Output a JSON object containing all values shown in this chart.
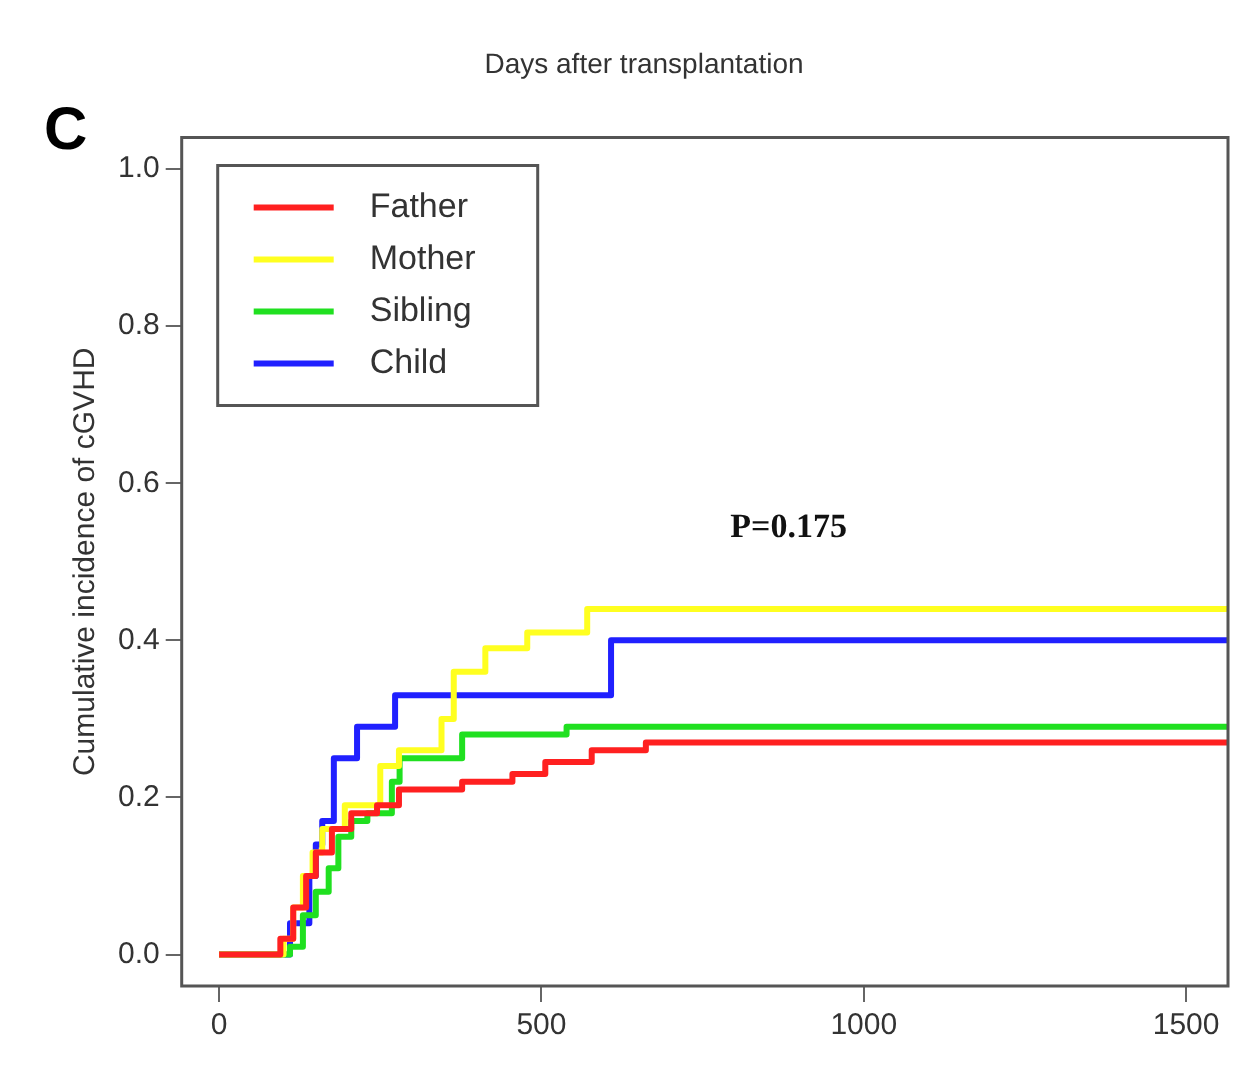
{
  "chart_data": {
    "type": "step",
    "title": "Days after transplantation",
    "ylabel": "Cumulative incidence of cGVHD",
    "annotations": [
      "C",
      "P=0.175"
    ],
    "xlim": [
      -58,
      1565
    ],
    "xticks": [
      0,
      500,
      1000,
      1500
    ],
    "ylim": [
      -0.04,
      1.04
    ],
    "yticks": [
      {
        "value": 0,
        "label": "0.0"
      },
      {
        "value": 0.2,
        "label": "0.2"
      },
      {
        "value": 0.4,
        "label": "0.4"
      },
      {
        "value": 0.6,
        "label": "0.6"
      },
      {
        "value": 0.8,
        "label": "0.8"
      },
      {
        "value": 1,
        "label": "1.0"
      }
    ],
    "grid": false,
    "legend": "top left",
    "marker": "none",
    "line_style": "solid",
    "series": [
      {
        "name": "Father",
        "color": "#ff2020",
        "x": [
          0,
          95,
          115,
          135,
          150,
          175,
          205,
          245,
          279,
          377,
          455,
          506,
          578,
          662,
          1565
        ],
        "values": [
          0,
          0.02,
          0.06,
          0.1,
          0.13,
          0.16,
          0.18,
          0.19,
          0.21,
          0.22,
          0.23,
          0.245,
          0.26,
          0.27,
          0.27
        ]
      },
      {
        "name": "Mother",
        "color": "#ffff20",
        "x": [
          0,
          100,
          115,
          130,
          145,
          160,
          195,
          250,
          279,
          345,
          364,
          413,
          478,
          571,
          1565
        ],
        "values": [
          0,
          0.02,
          0.06,
          0.1,
          0.13,
          0.16,
          0.19,
          0.24,
          0.26,
          0.3,
          0.36,
          0.39,
          0.41,
          0.44,
          0.44
        ]
      },
      {
        "name": "Sibling",
        "color": "#20e020",
        "x": [
          0,
          110,
          130,
          150,
          170,
          185,
          205,
          230,
          268,
          280,
          377,
          539,
          1565
        ],
        "values": [
          0,
          0.01,
          0.05,
          0.08,
          0.11,
          0.15,
          0.17,
          0.18,
          0.22,
          0.25,
          0.28,
          0.29,
          0.29
        ]
      },
      {
        "name": "Child",
        "color": "#2020ff",
        "x": [
          0,
          110,
          140,
          150,
          160,
          178,
          214,
          273,
          608,
          1565
        ],
        "values": [
          0,
          0.04,
          0.1,
          0.14,
          0.17,
          0.25,
          0.29,
          0.33,
          0.4,
          0.4
        ]
      }
    ]
  }
}
